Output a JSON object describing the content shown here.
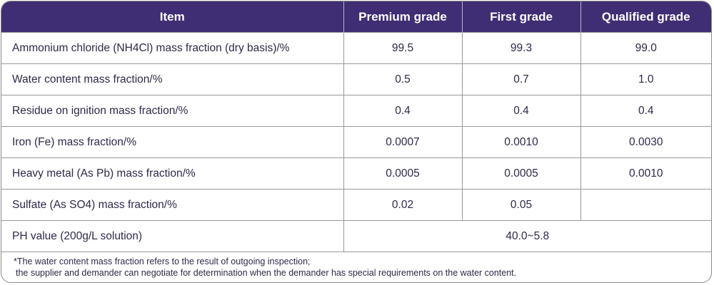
{
  "header": {
    "item": "Item",
    "premium": "Premium grade",
    "first": "First grade",
    "qualified": "Qualified grade"
  },
  "rows": [
    {
      "item": "Ammonium chloride (NH4Cl) mass fraction (dry basis)/%",
      "premium": "99.5",
      "first": "99.3",
      "qualified": "99.0"
    },
    {
      "item": "Water content mass fraction/%",
      "premium": "0.5",
      "first": "0.7",
      "qualified": "1.0"
    },
    {
      "item": "Residue on ignition mass fraction/%",
      "premium": "0.4",
      "first": "0.4",
      "qualified": "0.4"
    },
    {
      "item": "Iron (Fe) mass fraction/%",
      "premium": "0.0007",
      "first": "0.0010",
      "qualified": "0.0030"
    },
    {
      "item": "Heavy metal (As Pb) mass fraction/%",
      "premium": "0.0005",
      "first": "0.0005",
      "qualified": "0.0010"
    },
    {
      "item": "Sulfate (As SO4) mass fraction/%",
      "premium": "0.02",
      "first": "0.05",
      "qualified": ""
    }
  ],
  "ph_row": {
    "item": "PH value (200g/L solution)",
    "value": "40.0~5.8"
  },
  "footnote": {
    "line1": "*The water content mass fraction refers to the result of outgoing inspection;",
    "line2": "the supplier and demander can negotiate for determination when the demander has special requirements on the water content."
  },
  "colors": {
    "header_bg": "#3f2e73",
    "text": "#2d2a4a"
  }
}
